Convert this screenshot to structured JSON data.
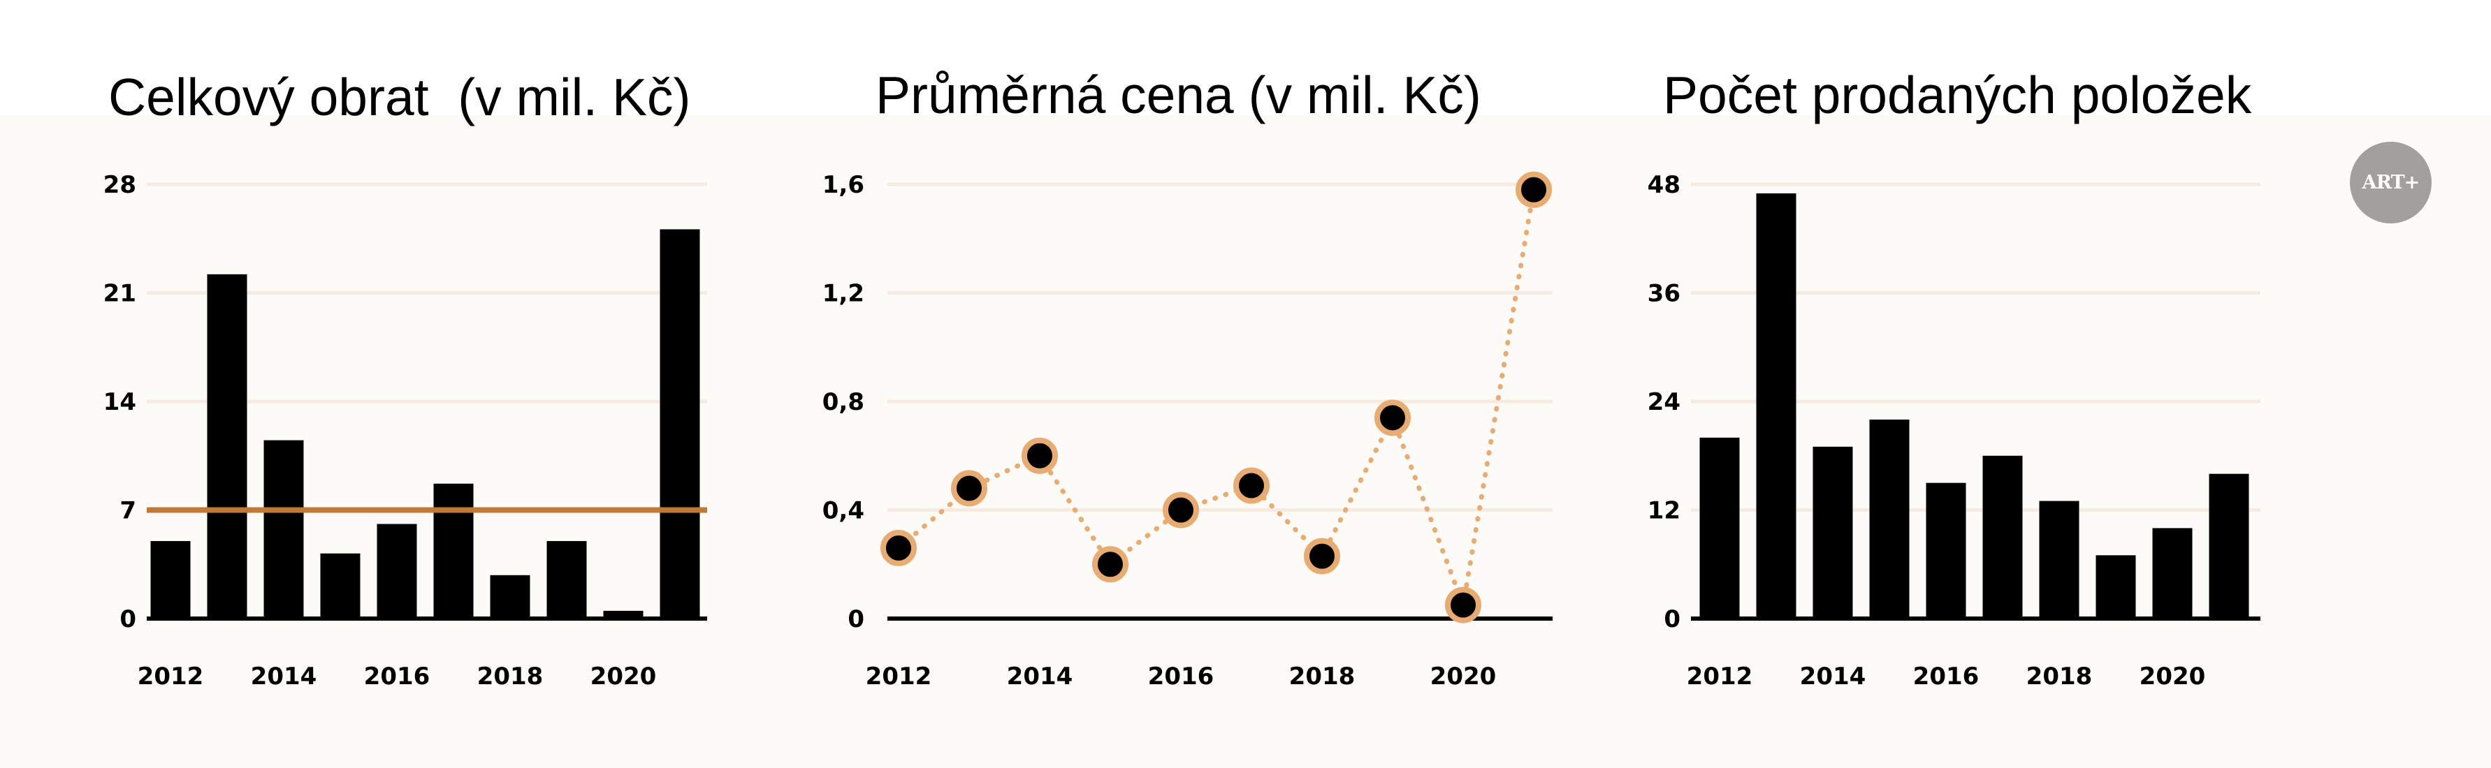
{
  "logo": {
    "text": "ART+",
    "color": "#a39f9c"
  },
  "colors": {
    "bar": "#000000",
    "reference_line": "#c07a35",
    "grid": "#f7ebe1",
    "marker_fill": "#000000",
    "marker_edge": "#e8ab72",
    "line": "#e8ab72"
  },
  "chart_data": [
    {
      "type": "bar",
      "title": "Celkový obrat  (v mil. Kč)",
      "x": [
        2012,
        2013,
        2014,
        2015,
        2016,
        2017,
        2018,
        2019,
        2020,
        2021
      ],
      "values": [
        5,
        22.2,
        11.5,
        4.2,
        6.1,
        8.7,
        2.8,
        5,
        0.5,
        25.1
      ],
      "ylim": [
        0,
        28
      ],
      "yticks": [
        0,
        7,
        14,
        21,
        28
      ],
      "ytick_labels": [
        "0",
        "7",
        "14",
        "21",
        "28"
      ],
      "xtick_labels": [
        "2012",
        "2014",
        "2016",
        "2018",
        "2020"
      ],
      "reference_line": 7,
      "grid": true
    },
    {
      "type": "line",
      "title": "Průměrná cena (v mil. Kč)",
      "x": [
        2012,
        2013,
        2014,
        2015,
        2016,
        2017,
        2018,
        2019,
        2020,
        2021
      ],
      "values": [
        0.26,
        0.48,
        0.6,
        0.2,
        0.4,
        0.49,
        0.23,
        0.74,
        0.05,
        1.58
      ],
      "ylim": [
        0,
        1.6
      ],
      "yticks": [
        0,
        0.4,
        0.8,
        1.2,
        1.6
      ],
      "ytick_labels": [
        "0",
        "0,4",
        "0,8",
        "1,2",
        "1,6"
      ],
      "xtick_labels": [
        "2012",
        "2014",
        "2016",
        "2018",
        "2020"
      ],
      "line_style": "dotted",
      "grid": true
    },
    {
      "type": "bar",
      "title": "Počet prodaných položek",
      "x": [
        2012,
        2013,
        2014,
        2015,
        2016,
        2017,
        2018,
        2019,
        2020,
        2021
      ],
      "values": [
        20,
        47,
        19,
        22,
        15,
        18,
        13,
        7,
        10,
        16
      ],
      "ylim": [
        0,
        48
      ],
      "yticks": [
        0,
        12,
        24,
        36,
        48
      ],
      "ytick_labels": [
        "0",
        "12",
        "24",
        "36",
        "48"
      ],
      "xtick_labels": [
        "2012",
        "2014",
        "2016",
        "2018",
        "2020"
      ],
      "grid": true
    }
  ]
}
